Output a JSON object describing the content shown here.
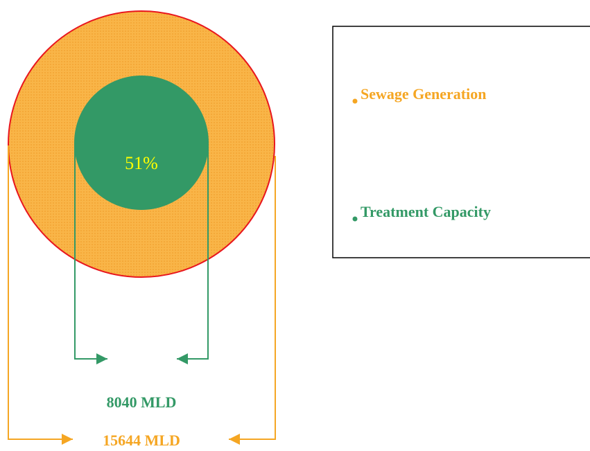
{
  "diagram": {
    "center_label": "51%",
    "legend": [
      "Sewage Generation",
      "Treatment Capacity"
    ],
    "dimensions": [
      "8040 MLD",
      "15644 MLD"
    ]
  }
}
